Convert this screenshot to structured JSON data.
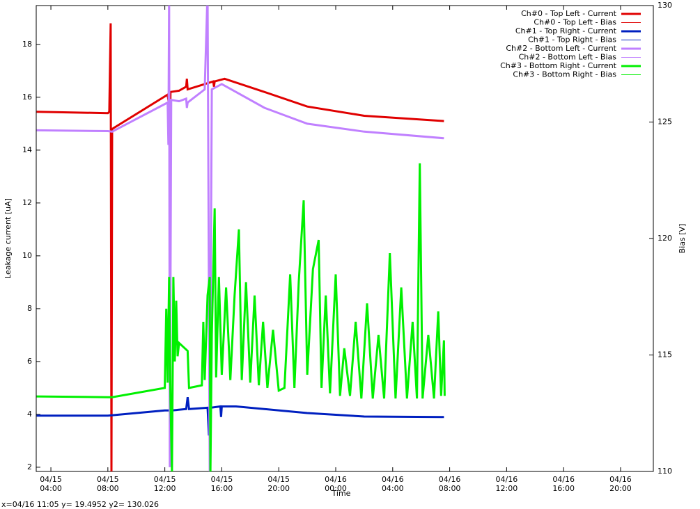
{
  "chart_data": {
    "type": "line",
    "x_label": "Time",
    "y_label": "Leakage current [uA]",
    "y2_label": "Bias [V]",
    "status": "x=04/16 11:05 y= 19.4952 y2= 130.026",
    "xlim": [
      2.97,
      46.3
    ],
    "xticks": [
      {
        "value": 4,
        "label": "04/15\n04:00"
      },
      {
        "value": 8,
        "label": "04/15\n08:00"
      },
      {
        "value": 12,
        "label": "04/15\n12:00"
      },
      {
        "value": 16,
        "label": "04/15\n16:00"
      },
      {
        "value": 20,
        "label": "04/15\n20:00"
      },
      {
        "value": 24,
        "label": "04/16\n00:00"
      },
      {
        "value": 28,
        "label": "04/16\n04:00"
      },
      {
        "value": 32,
        "label": "04/16\n08:00"
      },
      {
        "value": 36,
        "label": "04/16\n12:00"
      },
      {
        "value": 40,
        "label": "04/16\n16:00"
      },
      {
        "value": 44,
        "label": "04/16\n20:00"
      }
    ],
    "ylim": [
      1.84,
      19.47
    ],
    "yticks": [
      2,
      4,
      6,
      8,
      10,
      12,
      14,
      16,
      18
    ],
    "y2lim": [
      110,
      130
    ],
    "y2ticks": [
      110,
      115,
      120,
      125,
      130
    ],
    "series": [
      {
        "name": "Ch#0 - Top Left - Current",
        "color": "#e00000",
        "width": 3,
        "x": [
          3,
          8,
          8.1,
          8.2,
          8.25,
          8.3,
          12.2,
          12.3,
          12.35,
          12.4,
          13.0,
          13.5,
          13.55,
          13.6,
          14.8,
          15.4,
          15.45,
          15.5,
          16.2,
          19,
          22,
          26,
          31.6
        ],
        "values": [
          15.45,
          15.4,
          15.45,
          18.8,
          1.8,
          14.8,
          16.1,
          15.7,
          14.2,
          16.2,
          16.25,
          16.4,
          16.7,
          16.3,
          16.5,
          16.6,
          16.4,
          16.6,
          16.7,
          16.2,
          15.65,
          15.3,
          15.1
        ]
      },
      {
        "name": "Ch#0 - Top Left - Bias",
        "color": "#e00000",
        "width": 1,
        "axis": "y2",
        "x": [],
        "values": []
      },
      {
        "name": "Ch#1 - Top Right - Current",
        "color": "#0020c0",
        "width": 3,
        "x": [
          3,
          8,
          12.0,
          12.4,
          12.45,
          12.5,
          13.5,
          13.6,
          13.7,
          15.0,
          15.1,
          15.2,
          15.9,
          15.95,
          16.0,
          17,
          22,
          26,
          31.6
        ],
        "values": [
          3.95,
          3.95,
          4.15,
          4.15,
          2.3,
          4.15,
          4.2,
          4.65,
          4.2,
          4.25,
          3.2,
          4.25,
          4.3,
          3.9,
          4.3,
          4.3,
          4.05,
          3.92,
          3.9
        ]
      },
      {
        "name": "Ch#1 - Top Right - Bias",
        "color": "#0020c0",
        "width": 1,
        "axis": "y2",
        "x": [],
        "values": []
      },
      {
        "name": "Ch#2 - Bottom Left - Current",
        "color": "#c080ff",
        "width": 3,
        "x": [
          3,
          8,
          8.3,
          12.2,
          12.25,
          12.3,
          12.35,
          12.45,
          13.0,
          13.5,
          13.55,
          13.6,
          14.8,
          15.0,
          15.15,
          15.3,
          16.0,
          19,
          22,
          26,
          31.6
        ],
        "values": [
          14.75,
          14.72,
          14.7,
          15.8,
          14.2,
          20,
          2,
          15.9,
          15.85,
          15.95,
          15.6,
          15.8,
          16.3,
          20,
          1.8,
          16.3,
          16.5,
          15.6,
          15.0,
          14.7,
          14.45
        ]
      },
      {
        "name": "Ch#2 - Bottom Left - Bias",
        "color": "#c080ff",
        "width": 1,
        "axis": "y2",
        "x": [],
        "values": []
      },
      {
        "name": "Ch#3 - Bottom Right - Current",
        "color": "#00f000",
        "width": 3,
        "x": [
          3,
          8,
          8.3,
          12,
          12.1,
          12.2,
          12.3,
          12.4,
          12.5,
          12.6,
          12.7,
          12.8,
          12.9,
          13.0,
          13.6,
          13.7,
          14.6,
          14.7,
          14.8,
          15.0,
          15.15,
          15.2,
          15.3,
          15.5,
          15.6,
          15.8,
          16.0,
          16.3,
          16.6,
          16.9,
          17.2,
          17.4,
          17.7,
          18.0,
          18.3,
          18.6,
          18.9,
          19.2,
          19.6,
          20.0,
          20.4,
          20.8,
          21.1,
          21.4,
          21.75,
          22.0,
          22.4,
          22.8,
          23.0,
          23.3,
          23.6,
          24.0,
          24.3,
          24.6,
          25.0,
          25.4,
          25.8,
          26.2,
          26.6,
          27.0,
          27.4,
          27.8,
          28.2,
          28.6,
          29.0,
          29.4,
          29.7,
          29.9,
          30.1,
          30.5,
          30.9,
          31.2,
          31.4,
          31.6,
          31.65
        ],
        "values": [
          4.68,
          4.65,
          4.65,
          5.0,
          8.0,
          5.2,
          9.2,
          4.5,
          1.8,
          9.2,
          6.0,
          8.3,
          6.2,
          6.7,
          6.4,
          5.0,
          5.1,
          7.5,
          5.3,
          8.5,
          9.2,
          1.8,
          7.0,
          11.8,
          5.4,
          9.2,
          5.5,
          8.8,
          5.3,
          8.5,
          11.0,
          5.3,
          9.0,
          5.2,
          8.5,
          5.1,
          7.5,
          5.0,
          7.2,
          4.9,
          5.0,
          9.3,
          5.0,
          9.0,
          12.1,
          5.5,
          9.5,
          10.6,
          5.0,
          8.5,
          4.8,
          9.3,
          4.7,
          6.5,
          4.7,
          7.5,
          4.6,
          8.2,
          4.6,
          7.0,
          4.6,
          10.1,
          4.6,
          8.8,
          4.6,
          7.5,
          4.6,
          13.5,
          4.6,
          7.0,
          4.6,
          7.9,
          4.7,
          6.8,
          4.7
        ]
      },
      {
        "name": "Ch#3 - Bottom Right - Bias",
        "color": "#00f000",
        "width": 1,
        "axis": "y2",
        "x": [],
        "values": []
      }
    ]
  }
}
